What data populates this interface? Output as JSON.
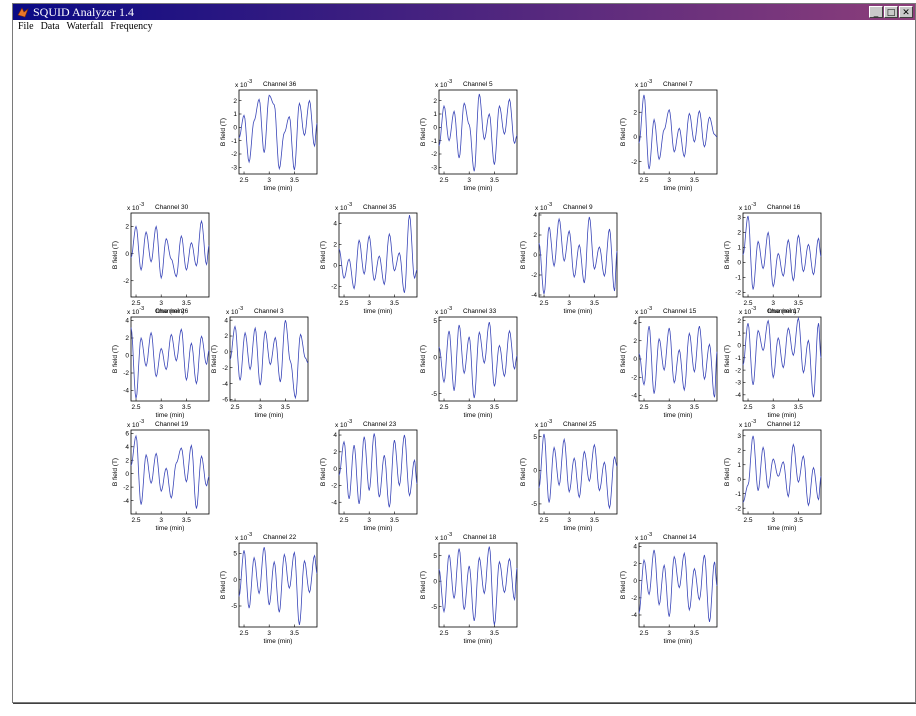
{
  "window": {
    "title": "SQUID Analyzer 1.4"
  },
  "menu": [
    "File",
    "Data",
    "Waterfall",
    "Frequency"
  ],
  "window_buttons": {
    "minimize": "_",
    "maximize": "□",
    "close": "✕"
  },
  "colors": {
    "trace": "#3a46b8",
    "title_bar_left": "#0a0a84",
    "title_bar_right": "#8c3e7a",
    "background": "#ffffff"
  },
  "chart_data": [
    {
      "type": "line",
      "title": "Channel 36",
      "exponent": "-3",
      "xlabel": "time (min)",
      "ylabel": "B field (T)",
      "xlim": [
        2.4,
        3.95
      ],
      "ylim": [
        -3.5,
        2.8
      ],
      "xticks": [
        "2.5",
        "3",
        "3.5"
      ],
      "yticks": [
        "2",
        "1",
        "0",
        "-1",
        "-2",
        "-3"
      ],
      "x": [
        2.4,
        2.5,
        2.6,
        2.7,
        2.8,
        2.9,
        3.0,
        3.1,
        3.2,
        3.3,
        3.4,
        3.5,
        3.6,
        3.7,
        3.8,
        3.9,
        3.95
      ],
      "values": [
        -0.8,
        0.9,
        -2.6,
        0.5,
        2.1,
        -1.9,
        2.4,
        1.7,
        -3.1,
        -0.4,
        0.8,
        -3.2,
        1.8,
        -0.6,
        2.0,
        -1.4,
        0.3
      ]
    },
    {
      "type": "line",
      "title": "Channel 5",
      "exponent": "-3",
      "xlabel": "time (min)",
      "ylabel": "B field (T)",
      "xlim": [
        2.4,
        3.95
      ],
      "ylim": [
        -3.5,
        2.8
      ],
      "xticks": [
        "2.5",
        "3",
        "3.5"
      ],
      "yticks": [
        "2",
        "1",
        "0",
        "-1",
        "-2",
        "-3"
      ],
      "x": [
        2.4,
        2.5,
        2.6,
        2.7,
        2.8,
        2.9,
        3.0,
        3.1,
        3.2,
        3.3,
        3.4,
        3.5,
        3.6,
        3.7,
        3.8,
        3.9,
        3.95
      ],
      "values": [
        -1.4,
        1.6,
        -1.0,
        1.2,
        -2.3,
        1.8,
        0.2,
        -3.3,
        2.5,
        -0.9,
        1.0,
        -2.8,
        1.6,
        -0.5,
        2.1,
        -1.2,
        -0.6
      ]
    },
    {
      "type": "line",
      "title": "Channel 7",
      "exponent": "-3",
      "xlabel": "time (min)",
      "ylabel": "B field (T)",
      "xlim": [
        2.4,
        3.95
      ],
      "ylim": [
        -3.0,
        3.8
      ],
      "xticks": [
        "2.5",
        "3",
        "3.5"
      ],
      "yticks": [
        "2",
        "0",
        "-2"
      ],
      "x": [
        2.4,
        2.5,
        2.6,
        2.7,
        2.8,
        2.9,
        3.0,
        3.1,
        3.2,
        3.3,
        3.4,
        3.5,
        3.6,
        3.7,
        3.8,
        3.9,
        3.95
      ],
      "values": [
        -0.5,
        3.4,
        -2.6,
        1.4,
        -1.8,
        0.6,
        2.2,
        -1.2,
        0.7,
        -1.6,
        1.9,
        -0.4,
        2.1,
        -0.8,
        1.6,
        0.2,
        0.0
      ]
    },
    {
      "type": "line",
      "title": "Channel 30",
      "exponent": "-3",
      "xlabel": "time (min)",
      "ylabel": "B field (T)",
      "xlim": [
        2.4,
        3.95
      ],
      "ylim": [
        -3.2,
        3.0
      ],
      "xticks": [
        "2.5",
        "3",
        "3.5"
      ],
      "yticks": [
        "2",
        "0",
        "-2"
      ],
      "x": [
        2.4,
        2.5,
        2.6,
        2.7,
        2.8,
        2.9,
        3.0,
        3.1,
        3.2,
        3.3,
        3.4,
        3.5,
        3.6,
        3.7,
        3.8,
        3.9,
        3.95
      ],
      "values": [
        -0.3,
        2.0,
        -1.2,
        1.6,
        -0.6,
        2.0,
        -1.8,
        1.1,
        -0.4,
        -1.7,
        1.3,
        -1.2,
        0.8,
        -0.9,
        2.4,
        -0.8,
        0.6
      ]
    },
    {
      "type": "line",
      "title": "Channel 35",
      "exponent": "-3",
      "xlabel": "time (min)",
      "ylabel": "B field (T)",
      "xlim": [
        2.4,
        3.95
      ],
      "ylim": [
        -3.0,
        5.0
      ],
      "xticks": [
        "2.5",
        "3",
        "3.5"
      ],
      "yticks": [
        "4",
        "2",
        "0",
        "-2"
      ],
      "x": [
        2.4,
        2.5,
        2.6,
        2.7,
        2.8,
        2.9,
        3.0,
        3.1,
        3.2,
        3.3,
        3.4,
        3.5,
        3.6,
        3.7,
        3.8,
        3.9,
        3.95
      ],
      "values": [
        1.6,
        -1.2,
        0.6,
        -2.2,
        2.4,
        -0.8,
        2.8,
        -1.4,
        0.9,
        -1.8,
        3.0,
        -0.5,
        1.2,
        -2.6,
        4.8,
        -1.2,
        -0.4
      ]
    },
    {
      "type": "line",
      "title": "Channel 9",
      "exponent": "-3",
      "xlabel": "time (min)",
      "ylabel": "B field (T)",
      "xlim": [
        2.4,
        3.95
      ],
      "ylim": [
        -4.2,
        4.2
      ],
      "xticks": [
        "2.5",
        "3",
        "3.5"
      ],
      "yticks": [
        "4",
        "2",
        "0",
        "-2",
        "-4"
      ],
      "x": [
        2.4,
        2.5,
        2.6,
        2.7,
        2.8,
        2.9,
        3.0,
        3.1,
        3.2,
        3.3,
        3.4,
        3.5,
        3.6,
        3.7,
        3.8,
        3.9,
        3.95
      ],
      "values": [
        1.2,
        -3.9,
        2.8,
        -1.1,
        3.6,
        -0.6,
        2.4,
        -2.2,
        1.0,
        -2.8,
        3.8,
        -1.4,
        0.8,
        -2.1,
        2.6,
        -3.6,
        0.4
      ]
    },
    {
      "type": "line",
      "title": "Channel 16",
      "exponent": "-3",
      "xlabel": "time (min)",
      "ylabel": "B field (T)",
      "xlim": [
        2.4,
        3.95
      ],
      "ylim": [
        -2.3,
        3.3
      ],
      "xticks": [
        "2.5",
        "3",
        "3.5"
      ],
      "yticks": [
        "3",
        "2",
        "1",
        "0",
        "-1",
        "-2"
      ],
      "x": [
        2.4,
        2.5,
        2.6,
        2.7,
        2.8,
        2.9,
        3.0,
        3.1,
        3.2,
        3.3,
        3.4,
        3.5,
        3.6,
        3.7,
        3.8,
        3.9,
        3.95
      ],
      "values": [
        0.5,
        3.1,
        -1.8,
        1.4,
        -0.4,
        2.0,
        -1.6,
        0.6,
        -0.9,
        1.5,
        -1.2,
        1.8,
        -0.6,
        1.2,
        -0.8,
        1.6,
        0.4
      ]
    },
    {
      "type": "line",
      "title": "Channel 26",
      "exponent": "-3",
      "xlabel": "time (min)",
      "ylabel": "B field (T)",
      "xlim": [
        2.4,
        3.95
      ],
      "ylim": [
        -5.2,
        4.4
      ],
      "xticks": [
        "2.5",
        "3",
        "3.5"
      ],
      "yticks": [
        "4",
        "2",
        "0",
        "-2",
        "-4"
      ],
      "x": [
        2.4,
        2.5,
        2.6,
        2.7,
        2.8,
        2.9,
        3.0,
        3.1,
        3.2,
        3.3,
        3.4,
        3.5,
        3.6,
        3.7,
        3.8,
        3.9,
        3.95
      ],
      "values": [
        3.2,
        -4.9,
        2.0,
        -1.2,
        2.6,
        -2.4,
        0.8,
        -1.6,
        2.4,
        -0.6,
        3.0,
        -2.8,
        1.4,
        -3.2,
        2.2,
        -1.0,
        0.6
      ]
    },
    {
      "type": "line",
      "title": "Channel 3",
      "exponent": "-3",
      "xlabel": "time (min)",
      "ylabel": "B field (T)",
      "xlim": [
        2.4,
        3.95
      ],
      "ylim": [
        -6.2,
        4.4
      ],
      "xticks": [
        "2.5",
        "3",
        "3.5"
      ],
      "yticks": [
        "4",
        "2",
        "0",
        "-2",
        "-4",
        "-6"
      ],
      "x": [
        2.4,
        2.5,
        2.6,
        2.7,
        2.8,
        2.9,
        3.0,
        3.1,
        3.2,
        3.3,
        3.4,
        3.5,
        3.6,
        3.7,
        3.8,
        3.9,
        3.95
      ],
      "values": [
        -1.0,
        3.2,
        -3.6,
        2.4,
        -2.2,
        3.0,
        -4.2,
        2.6,
        -1.6,
        1.8,
        -3.8,
        4.0,
        -1.2,
        -5.8,
        2.2,
        -0.8,
        -1.4
      ]
    },
    {
      "type": "line",
      "title": "Channel 33",
      "exponent": "-3",
      "xlabel": "time (min)",
      "ylabel": "B field (T)",
      "xlim": [
        2.4,
        3.95
      ],
      "ylim": [
        -6.0,
        5.5
      ],
      "xticks": [
        "2.5",
        "3",
        "3.5"
      ],
      "yticks": [
        "5",
        "0",
        "-5"
      ],
      "x": [
        2.4,
        2.5,
        2.6,
        2.7,
        2.8,
        2.9,
        3.0,
        3.1,
        3.2,
        3.3,
        3.4,
        3.5,
        3.6,
        3.7,
        3.8,
        3.9,
        3.95
      ],
      "values": [
        1.4,
        -3.4,
        3.6,
        -4.6,
        4.4,
        -2.2,
        2.8,
        -5.6,
        3.4,
        -0.8,
        4.8,
        -4.0,
        1.6,
        -2.6,
        3.6,
        -1.6,
        0.2
      ]
    },
    {
      "type": "line",
      "title": "Channel 15",
      "exponent": "-3",
      "xlabel": "time (min)",
      "ylabel": "B field (T)",
      "xlim": [
        2.4,
        3.95
      ],
      "ylim": [
        -4.6,
        4.6
      ],
      "xticks": [
        "2.5",
        "3",
        "3.5"
      ],
      "yticks": [
        "4",
        "2",
        "0",
        "-2",
        "-4"
      ],
      "x": [
        2.4,
        2.5,
        2.6,
        2.7,
        2.8,
        2.9,
        3.0,
        3.1,
        3.2,
        3.3,
        3.4,
        3.5,
        3.6,
        3.7,
        3.8,
        3.9,
        3.95
      ],
      "values": [
        0.6,
        -2.8,
        3.6,
        -3.8,
        2.2,
        -1.2,
        3.4,
        -2.6,
        1.0,
        -3.4,
        2.8,
        -1.4,
        3.6,
        -2.2,
        1.6,
        -4.2,
        0.8
      ]
    },
    {
      "type": "line",
      "title": "Channel 17",
      "exponent": "-3",
      "xlabel": "time (min)",
      "ylabel": "B field (T)",
      "xlim": [
        2.4,
        3.95
      ],
      "ylim": [
        -4.5,
        2.3
      ],
      "xticks": [
        "2.5",
        "3",
        "3.5"
      ],
      "yticks": [
        "2",
        "1",
        "0",
        "-1",
        "-2",
        "-3",
        "-4"
      ],
      "x": [
        2.4,
        2.5,
        2.6,
        2.7,
        2.8,
        2.9,
        3.0,
        3.1,
        3.2,
        3.3,
        3.4,
        3.5,
        3.6,
        3.7,
        3.8,
        3.9,
        3.95
      ],
      "values": [
        -1.6,
        1.8,
        -3.2,
        1.2,
        -0.4,
        2.0,
        -2.6,
        0.6,
        -1.8,
        1.4,
        -0.8,
        2.2,
        -2.2,
        0.4,
        -4.2,
        1.8,
        -1.0
      ]
    },
    {
      "type": "line",
      "title": "Channel 19",
      "exponent": "-3",
      "xlabel": "time (min)",
      "ylabel": "B field (T)",
      "xlim": [
        2.4,
        3.95
      ],
      "ylim": [
        -6.0,
        6.5
      ],
      "xticks": [
        "2.5",
        "3",
        "3.5"
      ],
      "yticks": [
        "6",
        "4",
        "2",
        "0",
        "-2",
        "-4"
      ],
      "x": [
        2.4,
        2.5,
        2.6,
        2.7,
        2.8,
        2.9,
        3.0,
        3.1,
        3.2,
        3.3,
        3.4,
        3.5,
        3.6,
        3.7,
        3.8,
        3.9,
        3.95
      ],
      "values": [
        1.2,
        5.6,
        -4.6,
        2.8,
        -1.4,
        3.0,
        -2.6,
        0.8,
        -3.6,
        1.6,
        3.8,
        -1.2,
        4.2,
        -5.2,
        2.6,
        -1.8,
        -0.4
      ]
    },
    {
      "type": "line",
      "title": "Channel 23",
      "exponent": "-3",
      "xlabel": "time (min)",
      "ylabel": "B field (T)",
      "xlim": [
        2.4,
        3.95
      ],
      "ylim": [
        -5.4,
        4.6
      ],
      "xticks": [
        "2.5",
        "3",
        "3.5"
      ],
      "yticks": [
        "4",
        "2",
        "0",
        "-2",
        "-4"
      ],
      "x": [
        2.4,
        2.5,
        2.6,
        2.7,
        2.8,
        2.9,
        3.0,
        3.1,
        3.2,
        3.3,
        3.4,
        3.5,
        3.6,
        3.7,
        3.8,
        3.9,
        3.95
      ],
      "values": [
        -0.8,
        3.2,
        -3.6,
        2.8,
        -4.2,
        3.8,
        -2.6,
        4.2,
        -3.4,
        1.6,
        -4.6,
        3.4,
        -2.0,
        4.0,
        -3.2,
        1.0,
        -1.8
      ]
    },
    {
      "type": "line",
      "title": "Channel 25",
      "exponent": "-3",
      "xlabel": "time (min)",
      "ylabel": "B field (T)",
      "xlim": [
        2.4,
        3.95
      ],
      "ylim": [
        -6.5,
        6.0
      ],
      "xticks": [
        "2.5",
        "3",
        "3.5"
      ],
      "yticks": [
        "5",
        "0",
        "-5"
      ],
      "x": [
        2.4,
        2.5,
        2.6,
        2.7,
        2.8,
        2.9,
        3.0,
        3.1,
        3.2,
        3.3,
        3.4,
        3.5,
        3.6,
        3.7,
        3.8,
        3.9,
        3.95
      ],
      "values": [
        -2.6,
        5.4,
        -4.8,
        3.4,
        -2.2,
        4.6,
        -3.2,
        1.8,
        -4.0,
        2.8,
        -1.6,
        3.8,
        -3.0,
        1.2,
        -5.6,
        2.0,
        0.6
      ]
    },
    {
      "type": "line",
      "title": "Channel 12",
      "exponent": "-3",
      "xlabel": "time (min)",
      "ylabel": "B field (T)",
      "xlim": [
        2.4,
        3.95
      ],
      "ylim": [
        -2.4,
        3.4
      ],
      "xticks": [
        "2.5",
        "3",
        "3.5"
      ],
      "yticks": [
        "3",
        "2",
        "1",
        "0",
        "-1",
        "-2"
      ],
      "x": [
        2.4,
        2.5,
        2.6,
        2.7,
        2.8,
        2.9,
        3.0,
        3.1,
        3.2,
        3.3,
        3.4,
        3.5,
        3.6,
        3.7,
        3.8,
        3.9,
        3.95
      ],
      "values": [
        -1.6,
        -0.4,
        3.0,
        -0.8,
        2.2,
        -0.6,
        1.4,
        0.2,
        1.2,
        -1.2,
        2.4,
        -0.2,
        1.6,
        -1.8,
        0.8,
        -1.4,
        0.2
      ]
    },
    {
      "type": "line",
      "title": "Channel 22",
      "exponent": "-3",
      "xlabel": "time (min)",
      "ylabel": "B field (T)",
      "xlim": [
        2.4,
        3.95
      ],
      "ylim": [
        -9.0,
        7.0
      ],
      "xticks": [
        "2.5",
        "3",
        "3.5"
      ],
      "yticks": [
        "5",
        "0",
        "-5"
      ],
      "x": [
        2.4,
        2.5,
        2.6,
        2.7,
        2.8,
        2.9,
        3.0,
        3.1,
        3.2,
        3.3,
        3.4,
        3.5,
        3.6,
        3.7,
        3.8,
        3.9,
        3.95
      ],
      "values": [
        -3.2,
        5.6,
        -5.4,
        4.2,
        -2.6,
        6.2,
        -4.8,
        3.4,
        -6.2,
        4.8,
        -1.6,
        5.2,
        -8.6,
        3.6,
        -2.4,
        4.6,
        1.2
      ]
    },
    {
      "type": "line",
      "title": "Channel 18",
      "exponent": "-3",
      "xlabel": "time (min)",
      "ylabel": "B field (T)",
      "xlim": [
        2.4,
        3.95
      ],
      "ylim": [
        -9.0,
        7.5
      ],
      "xticks": [
        "2.5",
        "3",
        "3.5"
      ],
      "yticks": [
        "5",
        "0",
        "-5"
      ],
      "x": [
        2.4,
        2.5,
        2.6,
        2.7,
        2.8,
        2.9,
        3.0,
        3.1,
        3.2,
        3.3,
        3.4,
        3.5,
        3.6,
        3.7,
        3.8,
        3.9,
        3.95
      ],
      "values": [
        2.4,
        -6.0,
        5.2,
        -3.4,
        6.4,
        -5.6,
        3.0,
        -7.8,
        4.6,
        -2.4,
        6.8,
        -8.6,
        3.8,
        -2.2,
        4.4,
        -3.6,
        2.6
      ]
    },
    {
      "type": "line",
      "title": "Channel 14",
      "exponent": "-3",
      "xlabel": "time (min)",
      "ylabel": "B field (T)",
      "xlim": [
        2.4,
        3.95
      ],
      "ylim": [
        -5.4,
        4.4
      ],
      "xticks": [
        "2.5",
        "3",
        "3.5"
      ],
      "yticks": [
        "4",
        "2",
        "0",
        "-2",
        "-4"
      ],
      "x": [
        2.4,
        2.5,
        2.6,
        2.7,
        2.8,
        2.9,
        3.0,
        3.1,
        3.2,
        3.3,
        3.4,
        3.5,
        3.6,
        3.7,
        3.8,
        3.9,
        3.95
      ],
      "values": [
        -3.8,
        2.4,
        -1.6,
        3.6,
        -2.8,
        1.8,
        -4.2,
        2.8,
        -0.8,
        3.2,
        -3.4,
        1.4,
        -2.2,
        3.0,
        -4.8,
        2.2,
        -0.6
      ]
    }
  ]
}
